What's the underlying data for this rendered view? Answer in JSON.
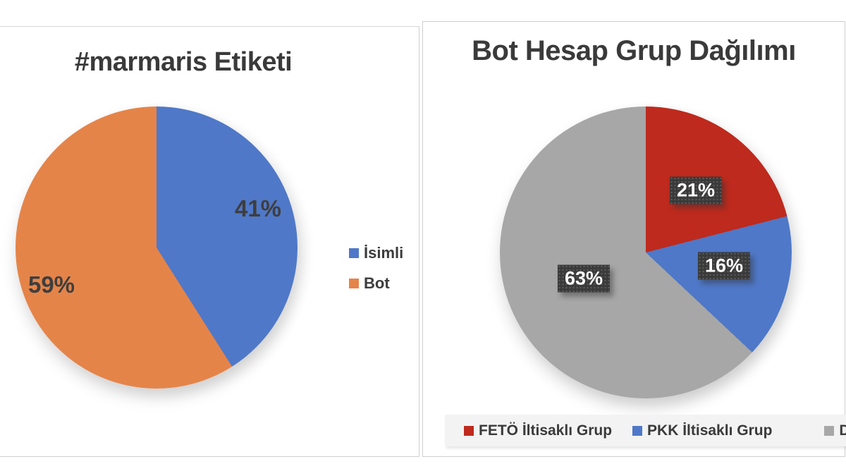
{
  "page": {
    "background": "#ffffff"
  },
  "colors": {
    "title_text": "#3a3a3a",
    "percent_label_text": "#3e3e3e",
    "label_box_bg": "#3a3a3a",
    "label_box_text": "#ffffff",
    "legend_strip_bg": "#f3f3f3",
    "card_border": "#cfcfcf"
  },
  "chart_data": [
    {
      "type": "pie",
      "title": "#marmaris Etiketi",
      "legend_position": "right",
      "start_angle_deg": 0,
      "direction": "clockwise",
      "slices": [
        {
          "label": "İsimli",
          "value": 41,
          "display": "41%",
          "color": "#4F78C8"
        },
        {
          "label": "Bot",
          "value": 59,
          "display": "59%",
          "color": "#E58449"
        }
      ]
    },
    {
      "type": "pie",
      "title": "Bot Hesap Grup Dağılımı",
      "legend_position": "bottom",
      "start_angle_deg": 0,
      "direction": "clockwise",
      "slices": [
        {
          "label": "FETÖ İltisaklı Grup",
          "value": 21,
          "display": "21%",
          "color": "#BE2A1D"
        },
        {
          "label": "PKK İltisaklı Grup",
          "value": 16,
          "display": "16%",
          "color": "#4F78C8"
        },
        {
          "label": "Diğer",
          "value": 63,
          "display": "63%",
          "color": "#A7A7A7"
        }
      ]
    }
  ]
}
